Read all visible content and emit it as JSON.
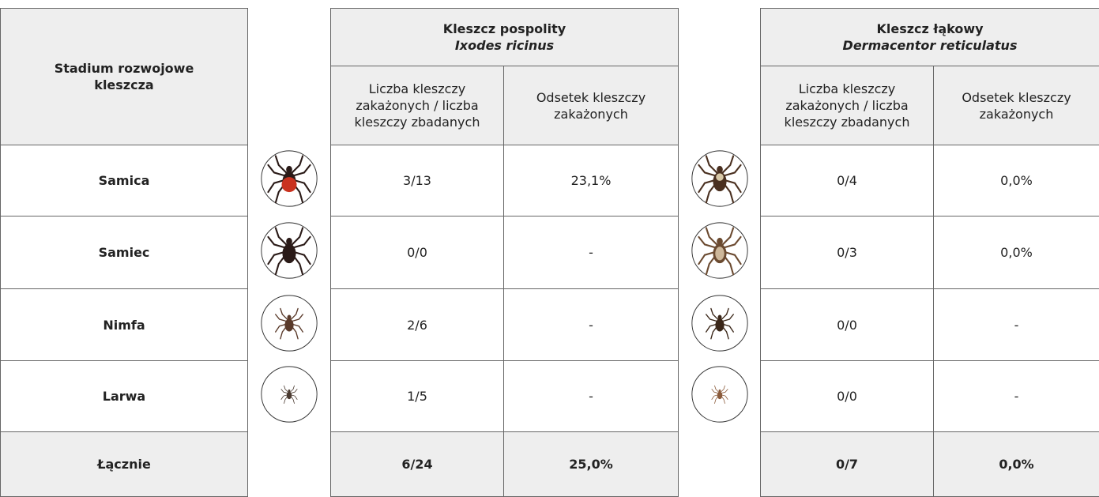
{
  "table": {
    "header": {
      "stage": "Stadium rozwojowe kleszcza",
      "species": [
        {
          "name": "Kleszcz pospolity",
          "latin": "Ixodes ricinus",
          "count_header": "Liczba kleszczy zakażonych / liczba kleszczy zbadanych",
          "percent_header": "Odsetek kleszczy zakażonych"
        },
        {
          "name": "Kleszcz łąkowy",
          "latin": "Dermacentor reticulatus",
          "count_header": "Liczba kleszczy zakażonych / liczba kleszczy zbadanych",
          "percent_header": "Odsetek kleszczy zakażonych"
        }
      ]
    },
    "rows": [
      {
        "stage": "Samica",
        "values": [
          "3/13",
          "23,1%",
          "0/4",
          "0,0%"
        ]
      },
      {
        "stage": "Samiec",
        "values": [
          "0/0",
          "-",
          "0/3",
          "0,0%"
        ]
      },
      {
        "stage": "Nimfa",
        "values": [
          "2/6",
          "-",
          "0/0",
          "-"
        ]
      },
      {
        "stage": "Larwa",
        "values": [
          "1/5",
          "-",
          "0/0",
          "-"
        ]
      }
    ],
    "total": {
      "stage": "Łącznie",
      "values": [
        "6/24",
        "25,0%",
        "0/7",
        "0,0%"
      ]
    }
  }
}
